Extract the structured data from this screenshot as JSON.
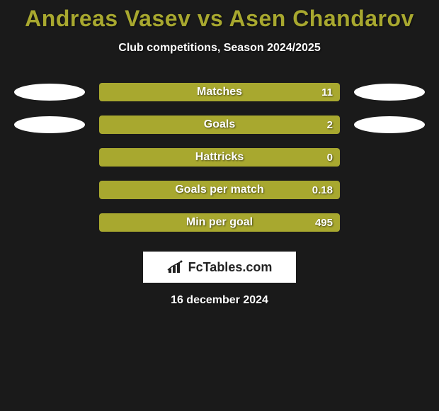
{
  "title": "Andreas Vasev vs Asen Chandarov",
  "subtitle": "Club competitions, Season 2024/2025",
  "date": "16 december 2024",
  "logo": {
    "text": "FcTables.com",
    "icon_color": "#222222"
  },
  "colors": {
    "background": "#1a1a1a",
    "bar_fill": "#a8a82f",
    "left_fill": "#a8a82f",
    "title_color": "#a8a82f",
    "text_color": "#ffffff",
    "ellipse_left": "#ffffff",
    "ellipse_right": "#ffffff"
  },
  "stats": [
    {
      "label": "Matches",
      "right_value": "11",
      "left_fill_pct": 0,
      "show_left_ellipse": true,
      "show_right_ellipse": true
    },
    {
      "label": "Goals",
      "right_value": "2",
      "left_fill_pct": 0,
      "show_left_ellipse": true,
      "show_right_ellipse": true
    },
    {
      "label": "Hattricks",
      "right_value": "0",
      "left_fill_pct": 0,
      "show_left_ellipse": false,
      "show_right_ellipse": false
    },
    {
      "label": "Goals per match",
      "right_value": "0.18",
      "left_fill_pct": 0,
      "show_left_ellipse": false,
      "show_right_ellipse": false
    },
    {
      "label": "Min per goal",
      "right_value": "495",
      "left_fill_pct": 0,
      "show_left_ellipse": false,
      "show_right_ellipse": false
    }
  ]
}
